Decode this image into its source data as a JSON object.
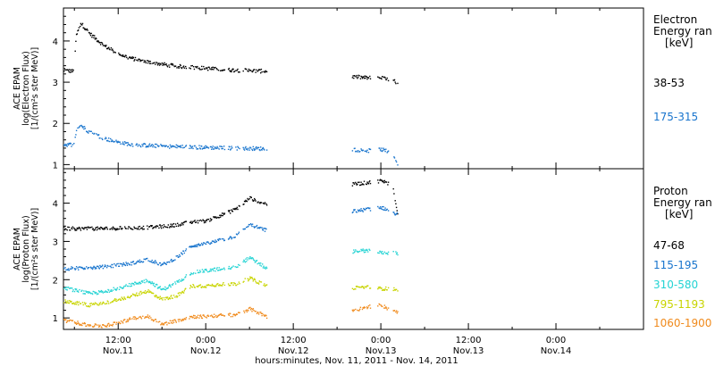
{
  "colors": {
    "black": "#000000",
    "blue": "#1874cd",
    "cyan": "#22d3d3",
    "yellow": "#c8d400",
    "orange": "#f08a1c"
  },
  "xlabel": "hours:minutes, Nov. 11, 2011 - Nov. 14, 2011",
  "x_ticks": [
    {
      "hours": 12,
      "time": "12:00",
      "date": "Nov.11"
    },
    {
      "hours": 24,
      "time": "0:00",
      "date": "Nov.12"
    },
    {
      "hours": 36,
      "time": "12:00",
      "date": "Nov.12"
    },
    {
      "hours": 48,
      "time": "0:00",
      "date": "Nov.13"
    },
    {
      "hours": 60,
      "time": "12:00",
      "date": "Nov.13"
    },
    {
      "hours": 72,
      "time": "0:00",
      "date": "Nov.14"
    }
  ],
  "chart_data": [
    {
      "type": "scatter",
      "panel": "electron",
      "ylabel": [
        "ACE EPAM",
        "log(Electron Flux)",
        "[1/(cm²s ster MeV)]"
      ],
      "ylim": [
        0.9,
        4.8
      ],
      "y_ticks": [
        "1",
        "2",
        "3",
        "4"
      ],
      "legend_title": [
        "Electron",
        "Energy ran",
        "[keV]"
      ],
      "x_units": "hours since Nov. 11, 2011 00:00",
      "xlim": [
        4.5,
        84
      ],
      "data_gaps": [
        [
          21.3,
          21.6
        ],
        [
          26.6,
          27.0
        ],
        [
          28.6,
          29.0
        ],
        [
          32.3,
          44.0
        ],
        [
          46.5,
          47.5
        ],
        [
          49.0,
          49.6
        ],
        [
          50.5,
          84
        ]
      ],
      "series": [
        {
          "name": "38-53",
          "color": "#000000",
          "profile": [
            [
              4.5,
              3.3
            ],
            [
              5.8,
              3.28
            ],
            [
              6.2,
              4.15
            ],
            [
              6.8,
              4.45
            ],
            [
              8,
              4.2
            ],
            [
              10,
              3.9
            ],
            [
              12,
              3.7
            ],
            [
              14,
              3.58
            ],
            [
              16,
              3.5
            ],
            [
              18,
              3.45
            ],
            [
              20,
              3.4
            ],
            [
              22,
              3.38
            ],
            [
              26,
              3.32
            ],
            [
              32,
              3.28
            ],
            [
              44,
              3.15
            ],
            [
              46,
              3.12
            ],
            [
              48,
              3.12
            ],
            [
              49.5,
              3.05
            ],
            [
              50.3,
              3.0
            ]
          ]
        },
        {
          "name": "175-315",
          "color": "#1874cd",
          "profile": [
            [
              4.5,
              1.5
            ],
            [
              5.8,
              1.5
            ],
            [
              6.2,
              1.85
            ],
            [
              6.8,
              1.97
            ],
            [
              8,
              1.8
            ],
            [
              10,
              1.65
            ],
            [
              12,
              1.55
            ],
            [
              14,
              1.5
            ],
            [
              16,
              1.48
            ],
            [
              18,
              1.46
            ],
            [
              20,
              1.45
            ],
            [
              22,
              1.44
            ],
            [
              26,
              1.42
            ],
            [
              32,
              1.4
            ],
            [
              44,
              1.38
            ],
            [
              46,
              1.35
            ],
            [
              48,
              1.38
            ],
            [
              49.5,
              1.3
            ],
            [
              50.3,
              1.0
            ]
          ]
        }
      ]
    },
    {
      "type": "scatter",
      "panel": "proton",
      "ylabel": [
        "ACE EPAM",
        "log(Proton Flux)",
        "[1/(cm²s ster MeV)]"
      ],
      "ylim": [
        0.7,
        4.9
      ],
      "y_ticks": [
        "1",
        "2",
        "3",
        "4"
      ],
      "legend_title": [
        "Proton",
        "Energy ran",
        "[keV]"
      ],
      "x_units": "hours since Nov. 11, 2011 00:00",
      "xlim": [
        4.5,
        84
      ],
      "data_gaps": [
        [
          21.3,
          21.6
        ],
        [
          26.6,
          27.0
        ],
        [
          28.6,
          29.0
        ],
        [
          32.3,
          44.0
        ],
        [
          46.5,
          47.5
        ],
        [
          49.0,
          49.6
        ],
        [
          50.5,
          84
        ]
      ],
      "series": [
        {
          "name": "47-68",
          "color": "#000000",
          "profile": [
            [
              4.5,
              3.35
            ],
            [
              10,
              3.35
            ],
            [
              16,
              3.38
            ],
            [
              19,
              3.42
            ],
            [
              22,
              3.52
            ],
            [
              24,
              3.55
            ],
            [
              26,
              3.7
            ],
            [
              28,
              3.85
            ],
            [
              30,
              4.15
            ],
            [
              31,
              4.05
            ],
            [
              32.3,
              4.0
            ],
            [
              44,
              4.5
            ],
            [
              46,
              4.55
            ],
            [
              48,
              4.6
            ],
            [
              49.5,
              4.5
            ],
            [
              50.3,
              3.7
            ]
          ]
        },
        {
          "name": "115-195",
          "color": "#1874cd",
          "profile": [
            [
              4.5,
              2.3
            ],
            [
              10,
              2.35
            ],
            [
              14,
              2.45
            ],
            [
              16,
              2.55
            ],
            [
              18,
              2.4
            ],
            [
              20,
              2.6
            ],
            [
              22,
              2.9
            ],
            [
              24,
              2.95
            ],
            [
              26,
              3.05
            ],
            [
              28,
              3.15
            ],
            [
              30,
              3.45
            ],
            [
              32.3,
              3.3
            ],
            [
              44,
              3.8
            ],
            [
              46,
              3.85
            ],
            [
              48,
              3.9
            ],
            [
              49.5,
              3.8
            ],
            [
              50.3,
              3.7
            ]
          ]
        },
        {
          "name": "310-580",
          "color": "#22d3d3",
          "profile": [
            [
              4.5,
              1.8
            ],
            [
              8,
              1.65
            ],
            [
              10,
              1.7
            ],
            [
              12,
              1.8
            ],
            [
              14,
              1.9
            ],
            [
              16,
              2.0
            ],
            [
              18,
              1.75
            ],
            [
              20,
              1.95
            ],
            [
              22,
              2.2
            ],
            [
              24,
              2.25
            ],
            [
              26,
              2.3
            ],
            [
              28,
              2.35
            ],
            [
              30,
              2.6
            ],
            [
              32.3,
              2.3
            ],
            [
              44,
              2.75
            ],
            [
              46,
              2.78
            ],
            [
              48,
              2.72
            ],
            [
              49.5,
              2.72
            ],
            [
              50.3,
              2.7
            ]
          ]
        },
        {
          "name": "795-1193",
          "color": "#c8d400",
          "profile": [
            [
              4.5,
              1.45
            ],
            [
              8,
              1.35
            ],
            [
              10,
              1.4
            ],
            [
              12,
              1.5
            ],
            [
              14,
              1.6
            ],
            [
              16,
              1.72
            ],
            [
              18,
              1.5
            ],
            [
              20,
              1.6
            ],
            [
              22,
              1.85
            ],
            [
              24,
              1.85
            ],
            [
              26,
              1.9
            ],
            [
              28,
              1.9
            ],
            [
              30,
              2.05
            ],
            [
              32.3,
              1.85
            ],
            [
              44,
              1.8
            ],
            [
              46,
              1.82
            ],
            [
              48,
              1.78
            ],
            [
              49.5,
              1.78
            ],
            [
              50.3,
              1.75
            ]
          ]
        },
        {
          "name": "1060-1900",
          "color": "#f08a1c",
          "profile": [
            [
              4.5,
              0.95
            ],
            [
              6,
              0.9
            ],
            [
              8,
              0.82
            ],
            [
              10,
              0.8
            ],
            [
              12,
              0.9
            ],
            [
              14,
              1.0
            ],
            [
              16,
              1.05
            ],
            [
              18,
              0.85
            ],
            [
              20,
              0.95
            ],
            [
              22,
              1.05
            ],
            [
              24,
              1.05
            ],
            [
              26,
              1.08
            ],
            [
              28,
              1.1
            ],
            [
              30,
              1.25
            ],
            [
              32.3,
              1.05
            ],
            [
              44,
              1.2
            ],
            [
              46,
              1.3
            ],
            [
              48,
              1.35
            ],
            [
              49.5,
              1.2
            ],
            [
              50.3,
              1.15
            ]
          ]
        }
      ]
    }
  ]
}
